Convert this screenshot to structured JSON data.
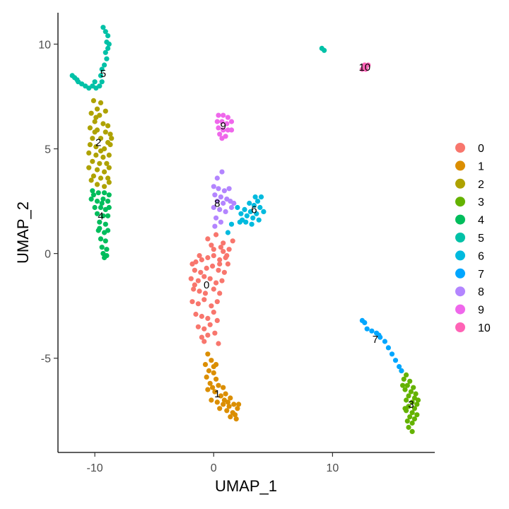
{
  "chart_data": {
    "type": "scatter",
    "xlabel": "UMAP_1",
    "ylabel": "UMAP_2",
    "xlim": [
      -13.1,
      18.6
    ],
    "ylim": [
      -9.5,
      11.5
    ],
    "x_ticks": [
      -10,
      0,
      10
    ],
    "y_ticks": [
      -5,
      0,
      5,
      10
    ],
    "x_tick_labels": [
      "-10",
      "0",
      "10"
    ],
    "y_tick_labels": [
      "-5",
      "0",
      "5",
      "10"
    ],
    "grid": false,
    "legend_position": "right",
    "legend_labels": [
      "0",
      "1",
      "2",
      "3",
      "4",
      "5",
      "6",
      "7",
      "8",
      "9",
      "10"
    ],
    "colors": [
      "#F8766D",
      "#DB8E00",
      "#AEA200",
      "#64B200",
      "#00BD5C",
      "#00C1A7",
      "#00BADE",
      "#00A6FF",
      "#B385FF",
      "#EF67EB",
      "#FF63B6"
    ],
    "clusters": [
      {
        "label": "0",
        "label_pos": [
          -0.6,
          -1.5
        ],
        "points": [
          [
            -1.8,
            -0.5
          ],
          [
            -1.5,
            -0.4
          ],
          [
            -1.0,
            -0.3
          ],
          [
            -0.5,
            -0.2
          ],
          [
            0.0,
            -0.1
          ],
          [
            0.5,
            -0.3
          ],
          [
            1.0,
            -0.2
          ],
          [
            1.2,
            -0.5
          ],
          [
            -1.6,
            -0.8
          ],
          [
            -1.1,
            -0.9
          ],
          [
            -0.6,
            -0.7
          ],
          [
            -0.1,
            -0.6
          ],
          [
            0.4,
            -0.8
          ],
          [
            0.9,
            -0.9
          ],
          [
            -1.9,
            -1.2
          ],
          [
            -1.3,
            -1.3
          ],
          [
            -0.8,
            -1.1
          ],
          [
            -0.3,
            -1.2
          ],
          [
            0.2,
            -1.4
          ],
          [
            0.7,
            -1.3
          ],
          [
            -1.7,
            -1.7
          ],
          [
            -1.2,
            -1.8
          ],
          [
            -0.7,
            -1.9
          ],
          [
            0.0,
            -1.7
          ],
          [
            0.5,
            -1.9
          ],
          [
            -1.8,
            -2.3
          ],
          [
            -1.3,
            -2.4
          ],
          [
            -0.8,
            -2.2
          ],
          [
            -0.2,
            -2.5
          ],
          [
            0.3,
            -2.3
          ],
          [
            -1.5,
            -2.9
          ],
          [
            -1.0,
            -3.0
          ],
          [
            -0.5,
            -3.1
          ],
          [
            0.0,
            -2.8
          ],
          [
            0.3,
            -3.2
          ],
          [
            -1.3,
            -3.5
          ],
          [
            -0.8,
            -3.6
          ],
          [
            -0.3,
            -3.4
          ],
          [
            0.1,
            -3.8
          ],
          [
            -1.0,
            -4.0
          ],
          [
            -0.5,
            -3.9
          ],
          [
            -0.8,
            -4.2
          ],
          [
            0.5,
            -0.5
          ],
          [
            1.1,
            -0.1
          ],
          [
            0.8,
            0.1
          ],
          [
            1.3,
            0.2
          ],
          [
            0.8,
            0.5
          ],
          [
            0.6,
            0.3
          ],
          [
            0.0,
            0.2
          ],
          [
            1.6,
            0.6
          ],
          [
            -0.2,
            0.4
          ],
          [
            -1.2,
            -0.1
          ],
          [
            -1.6,
            -1.5
          ],
          [
            0.4,
            -4.3
          ],
          [
            -0.5,
            0.7
          ],
          [
            0.2,
            0.9
          ]
        ]
      },
      {
        "label": "1",
        "label_pos": [
          0.3,
          -6.7
        ],
        "points": [
          [
            -0.5,
            -4.8
          ],
          [
            -0.2,
            -5.1
          ],
          [
            -0.7,
            -5.3
          ],
          [
            -0.4,
            -5.6
          ],
          [
            0.0,
            -5.7
          ],
          [
            -0.6,
            -5.9
          ],
          [
            0.2,
            -6.0
          ],
          [
            -0.3,
            -6.2
          ],
          [
            0.4,
            -6.3
          ],
          [
            0.8,
            -6.4
          ],
          [
            -0.5,
            -6.5
          ],
          [
            0.1,
            -6.6
          ],
          [
            0.6,
            -6.8
          ],
          [
            1.0,
            -6.7
          ],
          [
            1.4,
            -6.9
          ],
          [
            -0.2,
            -7.0
          ],
          [
            0.3,
            -7.1
          ],
          [
            0.8,
            -7.2
          ],
          [
            1.3,
            -7.3
          ],
          [
            1.7,
            -7.2
          ],
          [
            0.5,
            -7.4
          ],
          [
            1.1,
            -7.5
          ],
          [
            1.6,
            -7.6
          ],
          [
            2.0,
            -7.4
          ],
          [
            1.4,
            -7.8
          ],
          [
            1.9,
            -7.9
          ],
          [
            0.2,
            -5.3
          ],
          [
            -0.1,
            -6.4
          ],
          [
            0.9,
            -7.0
          ],
          [
            2.1,
            -7.2
          ],
          [
            1.8,
            -7.7
          ],
          [
            1.2,
            -7.1
          ],
          [
            0.0,
            -5.4
          ]
        ]
      },
      {
        "label": "2",
        "label_pos": [
          -9.7,
          5.3
        ],
        "points": [
          [
            -10.1,
            7.3
          ],
          [
            -9.5,
            7.2
          ],
          [
            -9.8,
            6.9
          ],
          [
            -10.3,
            6.7
          ],
          [
            -9.6,
            6.6
          ],
          [
            -10.0,
            6.3
          ],
          [
            -9.3,
            6.2
          ],
          [
            -10.4,
            6.0
          ],
          [
            -9.8,
            5.9
          ],
          [
            -9.1,
            5.8
          ],
          [
            -8.7,
            5.7
          ],
          [
            -10.2,
            5.5
          ],
          [
            -9.5,
            5.5
          ],
          [
            -8.9,
            5.3
          ],
          [
            -10.4,
            5.2
          ],
          [
            -9.9,
            5.1
          ],
          [
            -9.2,
            5.0
          ],
          [
            -8.7,
            5.2
          ],
          [
            -10.5,
            4.8
          ],
          [
            -9.9,
            4.7
          ],
          [
            -9.3,
            4.6
          ],
          [
            -8.8,
            4.7
          ],
          [
            -10.2,
            4.4
          ],
          [
            -9.6,
            4.3
          ],
          [
            -9.0,
            4.3
          ],
          [
            -10.5,
            4.1
          ],
          [
            -9.8,
            4.0
          ],
          [
            -9.2,
            3.9
          ],
          [
            -10.1,
            3.7
          ],
          [
            -9.5,
            3.6
          ],
          [
            -8.9,
            3.6
          ],
          [
            -9.8,
            3.3
          ],
          [
            -9.2,
            3.2
          ],
          [
            -8.8,
            3.4
          ],
          [
            -10.3,
            3.5
          ],
          [
            -9.1,
            6.8
          ],
          [
            -8.6,
            5.5
          ],
          [
            -8.9,
            6.1
          ],
          [
            -10.0,
            5.8
          ],
          [
            -9.5,
            4.9
          ],
          [
            -8.8,
            4.1
          ],
          [
            -9.9,
            6.5
          ]
        ]
      },
      {
        "label": "3",
        "label_pos": [
          16.6,
          -7.2
        ],
        "points": [
          [
            15.8,
            -5.6
          ],
          [
            16.2,
            -5.8
          ],
          [
            16.0,
            -6.0
          ],
          [
            16.5,
            -6.1
          ],
          [
            16.3,
            -6.3
          ],
          [
            16.8,
            -6.4
          ],
          [
            16.1,
            -6.5
          ],
          [
            16.6,
            -6.6
          ],
          [
            17.0,
            -6.7
          ],
          [
            16.4,
            -6.8
          ],
          [
            16.9,
            -6.9
          ],
          [
            16.2,
            -7.0
          ],
          [
            16.7,
            -7.1
          ],
          [
            17.1,
            -7.2
          ],
          [
            16.4,
            -7.3
          ],
          [
            16.9,
            -7.4
          ],
          [
            16.2,
            -7.5
          ],
          [
            16.7,
            -7.6
          ],
          [
            17.1,
            -7.7
          ],
          [
            16.5,
            -7.8
          ],
          [
            16.9,
            -7.9
          ],
          [
            16.3,
            -8.0
          ],
          [
            16.7,
            -8.1
          ],
          [
            16.4,
            -8.3
          ],
          [
            16.7,
            -8.5
          ],
          [
            16.1,
            -7.4
          ],
          [
            17.2,
            -7.0
          ],
          [
            15.9,
            -6.3
          ]
        ]
      },
      {
        "label": "4",
        "label_pos": [
          -9.5,
          1.8
        ],
        "points": [
          [
            -10.2,
            3.0
          ],
          [
            -9.7,
            2.9
          ],
          [
            -9.2,
            2.9
          ],
          [
            -8.8,
            2.8
          ],
          [
            -10.3,
            2.6
          ],
          [
            -9.8,
            2.5
          ],
          [
            -9.3,
            2.6
          ],
          [
            -8.9,
            2.5
          ],
          [
            -10.0,
            2.2
          ],
          [
            -9.5,
            2.2
          ],
          [
            -9.1,
            2.1
          ],
          [
            -8.8,
            2.2
          ],
          [
            -9.8,
            1.9
          ],
          [
            -9.3,
            1.8
          ],
          [
            -8.9,
            1.8
          ],
          [
            -9.6,
            1.5
          ],
          [
            -9.1,
            1.4
          ],
          [
            -9.7,
            1.1
          ],
          [
            -9.2,
            1.0
          ],
          [
            -8.9,
            1.1
          ],
          [
            -9.5,
            0.7
          ],
          [
            -9.1,
            0.6
          ],
          [
            -9.4,
            0.3
          ],
          [
            -9.0,
            0.2
          ],
          [
            -9.3,
            0.0
          ],
          [
            -9.0,
            -0.1
          ],
          [
            -9.2,
            -0.2
          ],
          [
            -10.1,
            2.8
          ],
          [
            -9.4,
            2.4
          ],
          [
            -9.6,
            1.2
          ]
        ]
      },
      {
        "label": "5",
        "label_pos": [
          -9.3,
          8.6
        ],
        "points": [
          [
            -9.3,
            10.8
          ],
          [
            -9.1,
            10.6
          ],
          [
            -8.9,
            10.4
          ],
          [
            -9.0,
            10.1
          ],
          [
            -8.9,
            9.8
          ],
          [
            -9.1,
            9.6
          ],
          [
            -9.0,
            9.3
          ],
          [
            -9.2,
            9.0
          ],
          [
            -9.4,
            8.8
          ],
          [
            -9.5,
            8.5
          ],
          [
            -9.4,
            8.2
          ],
          [
            -9.6,
            8.0
          ],
          [
            -9.9,
            7.9
          ],
          [
            -10.2,
            8.0
          ],
          [
            -10.5,
            7.9
          ],
          [
            -10.8,
            8.0
          ],
          [
            -11.1,
            8.1
          ],
          [
            -11.4,
            8.2
          ],
          [
            -11.7,
            8.4
          ],
          [
            -11.9,
            8.5
          ],
          [
            -11.5,
            8.3
          ],
          [
            -10.0,
            8.2
          ],
          [
            -8.8,
            10.0
          ],
          [
            9.1,
            9.8
          ],
          [
            9.3,
            9.7
          ]
        ]
      },
      {
        "label": "6",
        "label_pos": [
          3.4,
          2.1
        ],
        "points": [
          [
            2.0,
            2.2
          ],
          [
            2.3,
            1.9
          ],
          [
            2.6,
            2.1
          ],
          [
            2.4,
            1.6
          ],
          [
            2.8,
            1.8
          ],
          [
            3.1,
            2.0
          ],
          [
            3.3,
            1.7
          ],
          [
            3.0,
            2.4
          ],
          [
            3.4,
            2.3
          ],
          [
            3.7,
            2.5
          ],
          [
            3.9,
            2.2
          ],
          [
            3.6,
            1.9
          ],
          [
            3.2,
            1.4
          ],
          [
            2.7,
            1.5
          ],
          [
            4.0,
            2.7
          ],
          [
            3.5,
            2.7
          ],
          [
            2.2,
            1.5
          ],
          [
            4.2,
            2.0
          ],
          [
            1.5,
            1.4
          ],
          [
            1.2,
            1.0
          ],
          [
            3.8,
            1.6
          ]
        ]
      },
      {
        "label": "7",
        "label_pos": [
          13.6,
          -4.1
        ],
        "points": [
          [
            12.5,
            -3.2
          ],
          [
            12.9,
            -3.6
          ],
          [
            13.3,
            -3.7
          ],
          [
            13.7,
            -3.8
          ],
          [
            14.0,
            -4.0
          ],
          [
            14.4,
            -4.2
          ],
          [
            14.7,
            -4.5
          ],
          [
            15.0,
            -4.8
          ],
          [
            15.3,
            -5.1
          ],
          [
            15.6,
            -5.4
          ],
          [
            15.8,
            -5.6
          ],
          [
            12.7,
            -3.3
          ],
          [
            13.9,
            -3.9
          ]
        ]
      },
      {
        "label": "8",
        "label_pos": [
          0.3,
          2.4
        ],
        "points": [
          [
            0.0,
            3.2
          ],
          [
            0.4,
            3.1
          ],
          [
            0.9,
            3.0
          ],
          [
            1.3,
            3.1
          ],
          [
            0.1,
            2.8
          ],
          [
            0.6,
            2.7
          ],
          [
            1.1,
            2.6
          ],
          [
            0.3,
            2.5
          ],
          [
            0.8,
            2.4
          ],
          [
            1.4,
            2.5
          ],
          [
            0.0,
            2.2
          ],
          [
            0.5,
            2.1
          ],
          [
            1.0,
            2.0
          ],
          [
            1.5,
            2.2
          ],
          [
            0.2,
            1.7
          ],
          [
            0.6,
            1.5
          ],
          [
            0.1,
            1.3
          ],
          [
            1.7,
            2.4
          ],
          [
            0.3,
            3.6
          ],
          [
            0.7,
            3.9
          ]
        ]
      },
      {
        "label": "9",
        "label_pos": [
          0.8,
          6.1
        ],
        "points": [
          [
            0.4,
            6.6
          ],
          [
            0.8,
            6.6
          ],
          [
            1.2,
            6.5
          ],
          [
            0.3,
            6.3
          ],
          [
            0.7,
            6.3
          ],
          [
            1.1,
            6.2
          ],
          [
            1.5,
            6.3
          ],
          [
            0.4,
            6.0
          ],
          [
            0.8,
            5.9
          ],
          [
            1.2,
            5.9
          ],
          [
            1.5,
            5.9
          ],
          [
            0.5,
            5.7
          ],
          [
            1.0,
            5.6
          ],
          [
            0.7,
            5.5
          ]
        ]
      },
      {
        "label": "10",
        "label_pos": [
          12.7,
          8.9
        ],
        "points": [
          [
            12.7,
            9.0
          ],
          [
            12.5,
            8.8
          ],
          [
            12.8,
            8.8
          ],
          [
            13.0,
            9.0
          ]
        ]
      }
    ]
  }
}
